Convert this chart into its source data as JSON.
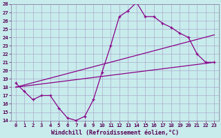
{
  "xlabel": "Windchill (Refroidissement éolien,°C)",
  "background_color": "#c8ecec",
  "grid_color": "#aaaacc",
  "line_color": "#880088",
  "xlim": [
    -0.5,
    23.5
  ],
  "ylim": [
    14,
    28
  ],
  "xticks": [
    0,
    1,
    2,
    3,
    4,
    5,
    6,
    7,
    8,
    9,
    10,
    11,
    12,
    13,
    14,
    15,
    16,
    17,
    18,
    19,
    20,
    21,
    22,
    23
  ],
  "yticks": [
    14,
    15,
    16,
    17,
    18,
    19,
    20,
    21,
    22,
    23,
    24,
    25,
    26,
    27,
    28
  ],
  "line1_x": [
    0,
    1,
    2,
    3,
    4,
    5,
    6,
    7,
    8,
    9,
    10,
    11,
    12,
    13,
    14,
    15,
    16,
    17,
    18,
    19,
    20,
    21,
    22,
    23
  ],
  "line1_y": [
    18.5,
    17.5,
    16.5,
    17.0,
    17.0,
    15.5,
    14.3,
    14.0,
    14.5,
    16.5,
    19.8,
    23.0,
    26.5,
    27.2,
    28.2,
    26.5,
    26.5,
    25.7,
    25.2,
    24.5,
    24.0,
    22.0,
    21.0,
    21.0
  ],
  "line2_x": [
    0,
    23
  ],
  "line2_y": [
    18.0,
    21.0
  ],
  "line3_x": [
    0,
    23
  ],
  "line3_y": [
    18.0,
    24.3
  ],
  "tick_fontsize": 5.2,
  "xlabel_fontsize": 6.0
}
